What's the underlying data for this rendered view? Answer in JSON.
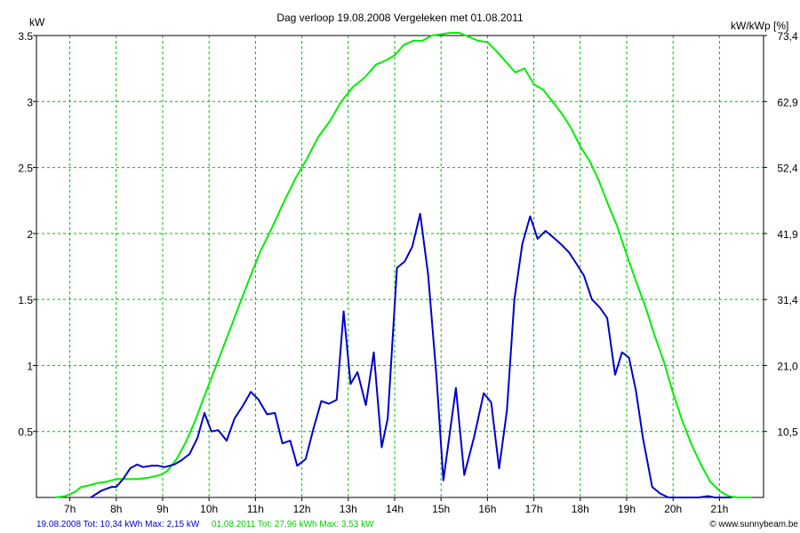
{
  "chart_data": {
    "type": "line",
    "title": "Dag  verloop 19.08.2008   Vergeleken met 01.08.2011",
    "ylabel_left": "kW",
    "ylabel_right": "kW/kWp [%]",
    "x_ticks": [
      "7h",
      "8h",
      "9h",
      "10h",
      "11h",
      "12h",
      "13h",
      "14h",
      "15h",
      "16h",
      "17h",
      "18h",
      "19h",
      "20h",
      "21h"
    ],
    "xlim": [
      6.28,
      21.95
    ],
    "y_left_ticks": [
      "0.5",
      "1",
      "1.5",
      "2",
      "2.5",
      "3",
      "3.5"
    ],
    "y_right_ticks": [
      "10,5",
      "21,0",
      "31,4",
      "41,9",
      "52,4",
      "62,9",
      "73,4"
    ],
    "ylim": [
      0,
      3.5
    ],
    "grid": true,
    "series": [
      {
        "name": "19.08.2008",
        "color": "#0000cc",
        "x": [
          7.45,
          7.67,
          7.9,
          8.0,
          8.15,
          8.3,
          8.45,
          8.58,
          8.75,
          8.9,
          9.05,
          9.25,
          9.4,
          9.58,
          9.75,
          9.9,
          10.05,
          10.2,
          10.38,
          10.55,
          10.72,
          10.9,
          11.07,
          11.25,
          11.42,
          11.58,
          11.75,
          11.9,
          12.08,
          12.25,
          12.42,
          12.58,
          12.75,
          12.9,
          13.05,
          13.2,
          13.38,
          13.55,
          13.72,
          13.85,
          14.05,
          14.22,
          14.38,
          14.55,
          14.72,
          14.9,
          15.05,
          15.32,
          15.5,
          15.72,
          15.92,
          16.08,
          16.25,
          16.42,
          16.58,
          16.75,
          16.92,
          17.08,
          17.25,
          17.42,
          17.58,
          17.75,
          17.92,
          18.08,
          18.25,
          18.42,
          18.58,
          18.75,
          18.9,
          19.05,
          19.2,
          19.35,
          19.55,
          19.72,
          19.9,
          20.05,
          20.22,
          20.55,
          20.75,
          20.9,
          21.05,
          21.25
        ],
        "y": [
          0.0,
          0.05,
          0.08,
          0.08,
          0.14,
          0.22,
          0.25,
          0.23,
          0.24,
          0.24,
          0.23,
          0.25,
          0.28,
          0.33,
          0.45,
          0.64,
          0.5,
          0.51,
          0.43,
          0.6,
          0.69,
          0.8,
          0.74,
          0.63,
          0.64,
          0.41,
          0.43,
          0.24,
          0.29,
          0.52,
          0.73,
          0.71,
          0.74,
          1.41,
          0.86,
          0.95,
          0.7,
          1.1,
          0.38,
          0.6,
          1.74,
          1.79,
          1.9,
          2.15,
          1.69,
          0.92,
          0.13,
          0.83,
          0.17,
          0.47,
          0.79,
          0.72,
          0.22,
          0.66,
          1.5,
          1.92,
          2.13,
          1.96,
          2.02,
          1.97,
          1.92,
          1.86,
          1.77,
          1.68,
          1.5,
          1.44,
          1.36,
          0.93,
          1.1,
          1.06,
          0.81,
          0.45,
          0.08,
          0.03,
          0.0,
          0.0,
          0.0,
          0.0,
          0.01,
          0.0,
          0.0,
          0.0
        ]
      },
      {
        "name": "01.08.2011",
        "color": "#00ee00",
        "x": [
          6.68,
          6.9,
          7.1,
          7.25,
          7.4,
          7.6,
          7.8,
          8.0,
          8.2,
          8.45,
          8.7,
          8.95,
          9.1,
          9.3,
          9.5,
          9.7,
          9.9,
          10.1,
          10.35,
          10.6,
          10.85,
          11.1,
          11.35,
          11.6,
          11.85,
          12.1,
          12.35,
          12.6,
          12.85,
          13.1,
          13.35,
          13.6,
          13.8,
          14.0,
          14.2,
          14.4,
          14.6,
          14.8,
          15.0,
          15.2,
          15.4,
          15.6,
          15.8,
          16.0,
          16.2,
          16.4,
          16.6,
          16.8,
          17.0,
          17.2,
          17.4,
          17.6,
          17.8,
          18.0,
          18.2,
          18.4,
          18.6,
          18.8,
          19.0,
          19.2,
          19.4,
          19.6,
          19.8,
          20.0,
          20.2,
          20.4,
          20.6,
          20.8,
          21.0,
          21.2,
          21.4,
          21.55,
          21.7
        ],
        "y": [
          0.0,
          0.01,
          0.04,
          0.08,
          0.09,
          0.11,
          0.12,
          0.14,
          0.14,
          0.14,
          0.15,
          0.17,
          0.2,
          0.29,
          0.42,
          0.58,
          0.77,
          0.95,
          1.18,
          1.41,
          1.64,
          1.86,
          2.04,
          2.23,
          2.41,
          2.56,
          2.73,
          2.85,
          3.0,
          3.11,
          3.18,
          3.28,
          3.31,
          3.35,
          3.43,
          3.46,
          3.46,
          3.5,
          3.51,
          3.52,
          3.52,
          3.49,
          3.46,
          3.45,
          3.38,
          3.3,
          3.22,
          3.25,
          3.13,
          3.09,
          3.0,
          2.91,
          2.8,
          2.66,
          2.55,
          2.4,
          2.22,
          2.05,
          1.84,
          1.64,
          1.45,
          1.23,
          1.03,
          0.79,
          0.58,
          0.4,
          0.25,
          0.12,
          0.05,
          0.01,
          0.0,
          0.0,
          0.0
        ]
      }
    ]
  },
  "footer": {
    "legend_blue": "19.08.2008 Tot: 10,34 kWh Max: 2,15 kW",
    "legend_green": "01.08.2011 Tot: 27,96 kWh Max: 3,53 kW",
    "credit": "© www.sunnybeam.be"
  },
  "colors": {
    "grid": "#00bb00",
    "axis": "#000000",
    "series_2008": "#0000cc",
    "series_2011": "#00ee00"
  }
}
